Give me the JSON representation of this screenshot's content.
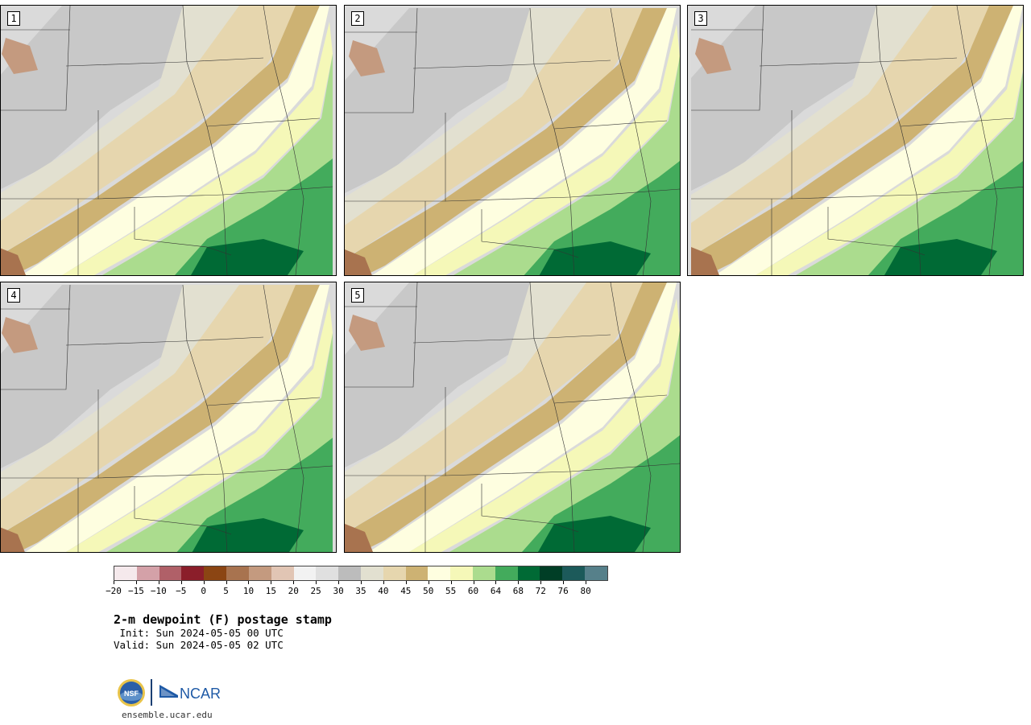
{
  "panels": [
    {
      "label": "1"
    },
    {
      "label": "2"
    },
    {
      "label": "3"
    },
    {
      "label": "4"
    },
    {
      "label": "5"
    }
  ],
  "colorbar": {
    "colors": [
      "#f5e9ec",
      "#d4a1a8",
      "#b06068",
      "#8b1e2a",
      "#8b4513",
      "#a8734f",
      "#c49a7f",
      "#e1c5b4",
      "#f2f2f2",
      "#e0e0e0",
      "#bcbcbc",
      "#e2e0d0",
      "#e6d6ae",
      "#cdb273",
      "#fefee0",
      "#f5f8b8",
      "#abdc8e",
      "#43ab5c",
      "#006a35",
      "#003e26",
      "#1c5a5a",
      "#56808a"
    ],
    "tick_labels": [
      "−20",
      "−15",
      "−10",
      "−5",
      "0",
      "5",
      "10",
      "15",
      "20",
      "25",
      "30",
      "35",
      "40",
      "45",
      "50",
      "55",
      "60",
      "64",
      "68",
      "72",
      "76",
      "80"
    ]
  },
  "title": "2-m dewpoint (F) postage stamp",
  "init": " Init: Sun 2024-05-05 00 UTC",
  "valid": "Valid: Sun 2024-05-05 02 UTC",
  "url": "ensemble.ucar.edu",
  "logos": {
    "nsf": "NSF",
    "ncar": "NCAR"
  }
}
